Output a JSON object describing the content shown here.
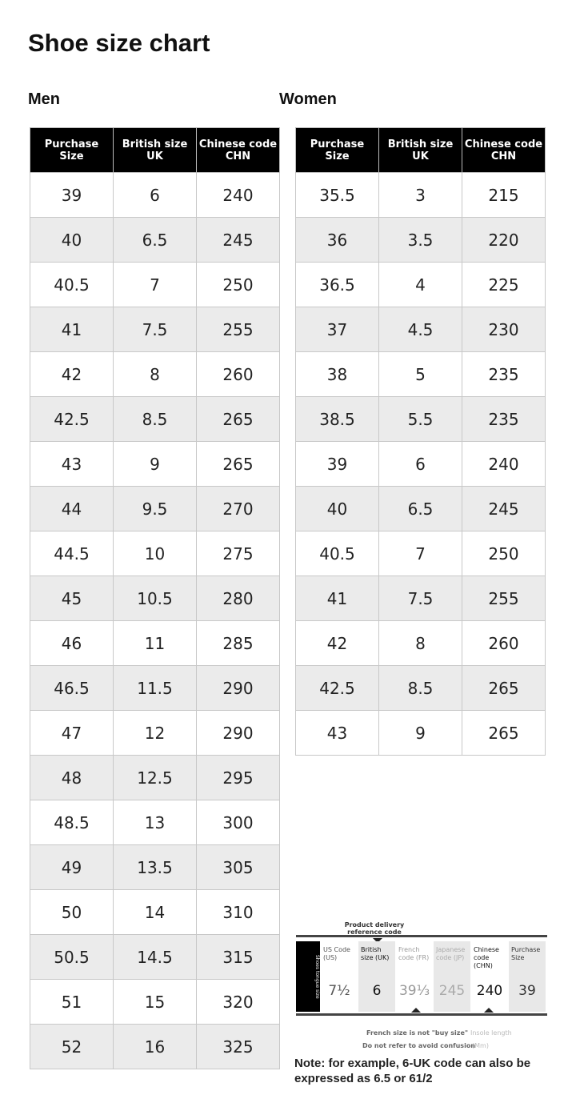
{
  "title": "Shoe size chart",
  "men": {
    "label": "Men",
    "headers": [
      "Purchase Size",
      "British size UK",
      "Chinese code CHN"
    ],
    "rows": [
      [
        "39",
        "6",
        "240"
      ],
      [
        "40",
        "6.5",
        "245"
      ],
      [
        "40.5",
        "7",
        "250"
      ],
      [
        "41",
        "7.5",
        "255"
      ],
      [
        "42",
        "8",
        "260"
      ],
      [
        "42.5",
        "8.5",
        "265"
      ],
      [
        "43",
        "9",
        "265"
      ],
      [
        "44",
        "9.5",
        "270"
      ],
      [
        "44.5",
        "10",
        "275"
      ],
      [
        "45",
        "10.5",
        "280"
      ],
      [
        "46",
        "11",
        "285"
      ],
      [
        "46.5",
        "11.5",
        "290"
      ],
      [
        "47",
        "12",
        "290"
      ],
      [
        "48",
        "12.5",
        "295"
      ],
      [
        "48.5",
        "13",
        "300"
      ],
      [
        "49",
        "13.5",
        "305"
      ],
      [
        "50",
        "14",
        "310"
      ],
      [
        "50.5",
        "14.5",
        "315"
      ],
      [
        "51",
        "15",
        "320"
      ],
      [
        "52",
        "16",
        "325"
      ]
    ]
  },
  "women": {
    "label": "Women",
    "headers": [
      "Purchase Size",
      "British size UK",
      "Chinese code CHN"
    ],
    "rows": [
      [
        "35.5",
        "3",
        "215"
      ],
      [
        "36",
        "3.5",
        "220"
      ],
      [
        "36.5",
        "4",
        "225"
      ],
      [
        "37",
        "4.5",
        "230"
      ],
      [
        "38",
        "5",
        "235"
      ],
      [
        "38.5",
        "5.5",
        "235"
      ],
      [
        "39",
        "6",
        "240"
      ],
      [
        "40",
        "6.5",
        "245"
      ],
      [
        "40.5",
        "7",
        "250"
      ],
      [
        "41",
        "7.5",
        "255"
      ],
      [
        "42",
        "8",
        "260"
      ],
      [
        "42.5",
        "8.5",
        "265"
      ],
      [
        "43",
        "9",
        "265"
      ]
    ]
  },
  "diagram": {
    "top_label": "Product delivery reference code",
    "side_label": "Shoes tongue size",
    "columns": [
      {
        "header": "US Code (US)",
        "value": "7½"
      },
      {
        "header": "British size (UK)",
        "value": "6"
      },
      {
        "header": "French code (FR)",
        "value": "39⅓"
      },
      {
        "header": "Japanese code (JP)",
        "value": "245"
      },
      {
        "header": "Chinese code (CHN)",
        "value": "240"
      },
      {
        "header": "Purchase Size",
        "value": "39"
      }
    ],
    "french_note_1": "French size is not \"buy size\"",
    "french_note_2": "Do not refer to avoid confusion",
    "insole_1": "Insole length",
    "insole_2": "(Mm)"
  },
  "note": "Note: for example, 6-UK code can also be expressed as 6.5 or 61/2"
}
